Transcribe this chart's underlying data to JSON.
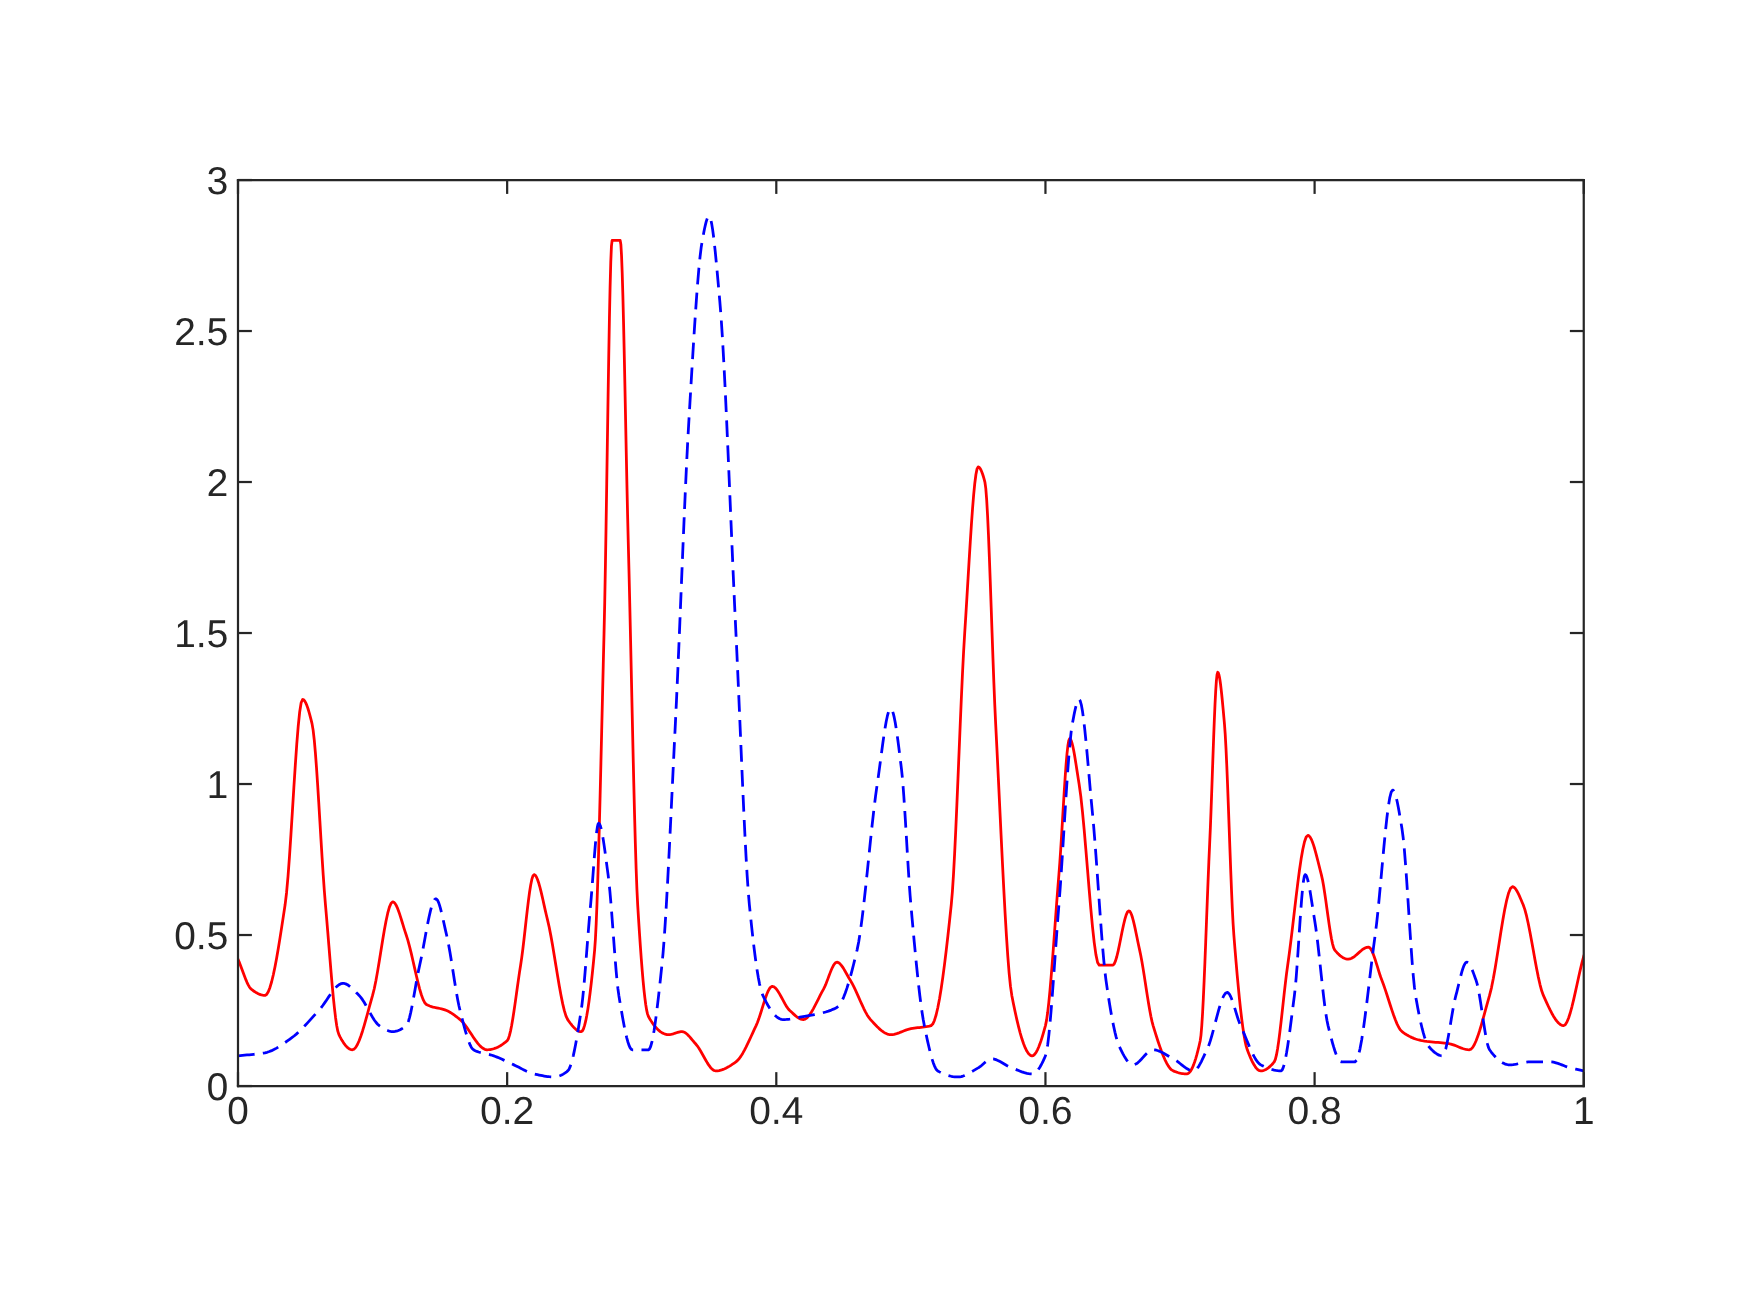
{
  "chart_data": {
    "type": "line",
    "xlim": [
      0,
      1
    ],
    "ylim": [
      0,
      3
    ],
    "xticks": [
      0,
      0.2,
      0.4,
      0.6,
      0.8,
      1
    ],
    "yticks": [
      0,
      0.5,
      1,
      1.5,
      2,
      2.5,
      3
    ],
    "series": [
      {
        "color": "#ff0000",
        "line_style": "solid",
        "x": [
          0,
          0.01,
          0.02,
          0.035,
          0.048,
          0.055,
          0.065,
          0.075,
          0.085,
          0.1,
          0.115,
          0.125,
          0.14,
          0.155,
          0.165,
          0.185,
          0.2,
          0.21,
          0.22,
          0.23,
          0.245,
          0.255,
          0.265,
          0.272,
          0.278,
          0.284,
          0.29,
          0.297,
          0.305,
          0.32,
          0.33,
          0.34,
          0.355,
          0.37,
          0.385,
          0.397,
          0.41,
          0.42,
          0.435,
          0.445,
          0.455,
          0.47,
          0.485,
          0.5,
          0.515,
          0.53,
          0.54,
          0.55,
          0.555,
          0.563,
          0.575,
          0.59,
          0.6,
          0.61,
          0.618,
          0.625,
          0.64,
          0.65,
          0.662,
          0.67,
          0.68,
          0.695,
          0.705,
          0.715,
          0.722,
          0.728,
          0.733,
          0.74,
          0.75,
          0.76,
          0.77,
          0.78,
          0.795,
          0.805,
          0.815,
          0.825,
          0.84,
          0.85,
          0.865,
          0.88,
          0.9,
          0.915,
          0.93,
          0.947,
          0.955,
          0.97,
          0.985,
          1.0
        ],
        "values": [
          0.42,
          0.32,
          0.3,
          0.6,
          1.28,
          1.2,
          0.6,
          0.17,
          0.12,
          0.3,
          0.61,
          0.5,
          0.27,
          0.25,
          0.22,
          0.12,
          0.15,
          0.4,
          0.7,
          0.55,
          0.22,
          0.18,
          0.45,
          1.5,
          2.8,
          2.8,
          1.8,
          0.6,
          0.23,
          0.17,
          0.18,
          0.14,
          0.05,
          0.08,
          0.2,
          0.33,
          0.25,
          0.22,
          0.32,
          0.41,
          0.35,
          0.22,
          0.17,
          0.19,
          0.2,
          0.6,
          1.5,
          2.05,
          2.0,
          1.2,
          0.3,
          0.1,
          0.2,
          0.7,
          1.15,
          1.0,
          0.4,
          0.4,
          0.58,
          0.45,
          0.2,
          0.05,
          0.04,
          0.15,
          0.8,
          1.37,
          1.2,
          0.5,
          0.12,
          0.05,
          0.08,
          0.4,
          0.83,
          0.7,
          0.45,
          0.42,
          0.46,
          0.35,
          0.18,
          0.15,
          0.14,
          0.12,
          0.3,
          0.66,
          0.6,
          0.3,
          0.2,
          0.43
        ]
      },
      {
        "color": "#0000ff",
        "line_style": "dashed",
        "x": [
          0,
          0.02,
          0.04,
          0.06,
          0.078,
          0.09,
          0.105,
          0.115,
          0.125,
          0.135,
          0.147,
          0.155,
          0.165,
          0.175,
          0.19,
          0.205,
          0.22,
          0.235,
          0.245,
          0.255,
          0.262,
          0.268,
          0.275,
          0.283,
          0.293,
          0.305,
          0.315,
          0.325,
          0.335,
          0.345,
          0.35,
          0.358,
          0.37,
          0.38,
          0.39,
          0.405,
          0.42,
          0.445,
          0.46,
          0.475,
          0.485,
          0.493,
          0.5,
          0.51,
          0.52,
          0.535,
          0.55,
          0.56,
          0.575,
          0.59,
          0.6,
          0.61,
          0.62,
          0.625,
          0.635,
          0.645,
          0.655,
          0.665,
          0.68,
          0.695,
          0.71,
          0.72,
          0.735,
          0.745,
          0.76,
          0.775,
          0.785,
          0.793,
          0.8,
          0.81,
          0.82,
          0.83,
          0.845,
          0.858,
          0.865,
          0.875,
          0.885,
          0.895,
          0.905,
          0.913,
          0.92,
          0.93,
          0.945,
          0.96,
          0.975,
          0.99,
          1.0
        ],
        "values": [
          0.1,
          0.11,
          0.16,
          0.25,
          0.34,
          0.3,
          0.2,
          0.18,
          0.2,
          0.4,
          0.62,
          0.5,
          0.25,
          0.12,
          0.1,
          0.07,
          0.04,
          0.03,
          0.05,
          0.25,
          0.6,
          0.87,
          0.7,
          0.3,
          0.12,
          0.12,
          0.4,
          1.2,
          2.2,
          2.8,
          2.88,
          2.6,
          1.5,
          0.6,
          0.3,
          0.22,
          0.23,
          0.26,
          0.45,
          1.0,
          1.25,
          1.05,
          0.6,
          0.2,
          0.05,
          0.03,
          0.06,
          0.09,
          0.06,
          0.04,
          0.1,
          0.6,
          1.2,
          1.28,
          0.9,
          0.35,
          0.13,
          0.07,
          0.12,
          0.09,
          0.05,
          0.12,
          0.31,
          0.2,
          0.07,
          0.05,
          0.3,
          0.7,
          0.55,
          0.2,
          0.08,
          0.08,
          0.5,
          0.98,
          0.85,
          0.3,
          0.13,
          0.1,
          0.3,
          0.41,
          0.35,
          0.12,
          0.07,
          0.08,
          0.08,
          0.06,
          0.05
        ]
      }
    ]
  }
}
